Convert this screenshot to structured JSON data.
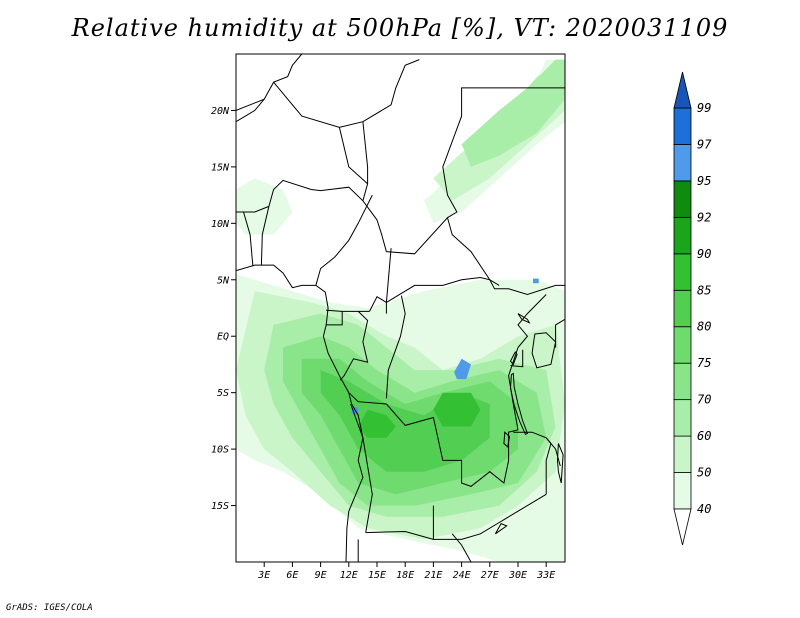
{
  "title": "Relative humidity at 500hPa [%], VT: 2020031109",
  "footer": "GrADS: IGES/COLA",
  "map": {
    "lon_range": [
      0,
      35
    ],
    "lat_range": [
      -20,
      25
    ],
    "x_ticks": [
      {
        "value": 3,
        "label": "3E"
      },
      {
        "value": 6,
        "label": "6E"
      },
      {
        "value": 9,
        "label": "9E"
      },
      {
        "value": 12,
        "label": "12E"
      },
      {
        "value": 15,
        "label": "15E"
      },
      {
        "value": 18,
        "label": "18E"
      },
      {
        "value": 21,
        "label": "21E"
      },
      {
        "value": 24,
        "label": "24E"
      },
      {
        "value": 27,
        "label": "27E"
      },
      {
        "value": 30,
        "label": "30E"
      },
      {
        "value": 33,
        "label": "33E"
      }
    ],
    "y_ticks": [
      {
        "value": 20,
        "label": "20N"
      },
      {
        "value": 15,
        "label": "15N"
      },
      {
        "value": 10,
        "label": "10N"
      },
      {
        "value": 5,
        "label": "5N"
      },
      {
        "value": 0,
        "label": "EQ"
      },
      {
        "value": -5,
        "label": "5S"
      },
      {
        "value": -10,
        "label": "10S"
      },
      {
        "value": -15,
        "label": "15S"
      }
    ]
  },
  "colorbar": {
    "labels": [
      "40",
      "50",
      "60",
      "70",
      "75",
      "80",
      "85",
      "90",
      "92",
      "95",
      "97",
      "99"
    ],
    "colors": [
      "#ffffff",
      "#e6fbe6",
      "#c9f5c9",
      "#a8eda8",
      "#8ae48a",
      "#6fdb6f",
      "#52cf52",
      "#33c033",
      "#1ca51c",
      "#0f8c0f",
      "#4f9bea",
      "#1f6fd8",
      "#1755b8"
    ]
  },
  "moist_areas": [
    {
      "level": 1,
      "pts": [
        [
          0,
          5.5
        ],
        [
          6,
          4
        ],
        [
          10,
          3
        ],
        [
          14,
          2.5
        ],
        [
          20,
          4
        ],
        [
          26,
          5
        ],
        [
          32,
          5
        ],
        [
          35,
          4
        ],
        [
          35,
          -20
        ],
        [
          28,
          -20
        ],
        [
          24,
          -19
        ],
        [
          18,
          -18
        ],
        [
          13,
          -17
        ],
        [
          9,
          -14
        ],
        [
          5,
          -12
        ],
        [
          2,
          -11
        ],
        [
          0,
          -10
        ]
      ]
    },
    {
      "level": 1,
      "pts": [
        [
          20,
          12
        ],
        [
          24,
          15
        ],
        [
          28,
          18
        ],
        [
          31,
          21
        ],
        [
          33,
          24.5
        ],
        [
          35,
          24.5
        ],
        [
          35,
          19
        ],
        [
          32,
          17
        ],
        [
          28,
          14
        ],
        [
          24,
          11
        ],
        [
          21,
          10
        ]
      ]
    },
    {
      "level": 1,
      "pts": [
        [
          0,
          13
        ],
        [
          2,
          14
        ],
        [
          5,
          13
        ],
        [
          6,
          11
        ],
        [
          4,
          9
        ],
        [
          1,
          9
        ],
        [
          0,
          10
        ]
      ]
    },
    {
      "level": 2,
      "pts": [
        [
          2,
          4
        ],
        [
          8,
          3
        ],
        [
          12,
          2
        ],
        [
          16,
          0
        ],
        [
          19,
          -1
        ],
        [
          22,
          -3
        ],
        [
          26,
          -2
        ],
        [
          30,
          0
        ],
        [
          34,
          1
        ],
        [
          35,
          -6
        ],
        [
          34,
          -12
        ],
        [
          30,
          -15
        ],
        [
          26,
          -17
        ],
        [
          20,
          -18
        ],
        [
          14,
          -17
        ],
        [
          10,
          -15
        ],
        [
          6,
          -12
        ],
        [
          3,
          -10
        ],
        [
          1,
          -7
        ],
        [
          0,
          -3
        ]
      ]
    },
    {
      "level": 2,
      "pts": [
        [
          21,
          14
        ],
        [
          25,
          17
        ],
        [
          29,
          20
        ],
        [
          32,
          23
        ],
        [
          35,
          24.5
        ],
        [
          35,
          20
        ],
        [
          31,
          17
        ],
        [
          27,
          14
        ],
        [
          23,
          12
        ]
      ]
    },
    {
      "level": 3,
      "pts": [
        [
          4,
          1
        ],
        [
          9,
          2
        ],
        [
          13,
          1
        ],
        [
          16,
          -1
        ],
        [
          19,
          -3
        ],
        [
          23,
          -3
        ],
        [
          28,
          -2
        ],
        [
          33,
          -3
        ],
        [
          34,
          -8
        ],
        [
          32,
          -12
        ],
        [
          28,
          -15
        ],
        [
          22,
          -16
        ],
        [
          16,
          -16
        ],
        [
          12,
          -15
        ],
        [
          9,
          -12
        ],
        [
          6,
          -9
        ],
        [
          4,
          -6
        ],
        [
          3,
          -3
        ]
      ]
    },
    {
      "level": 3,
      "pts": [
        [
          24,
          17
        ],
        [
          28,
          20
        ],
        [
          31,
          22
        ],
        [
          34,
          24.5
        ],
        [
          35,
          24.5
        ],
        [
          35,
          21
        ],
        [
          32,
          18
        ],
        [
          28,
          16
        ],
        [
          25,
          15
        ]
      ]
    },
    {
      "level": 4,
      "pts": [
        [
          5,
          -1
        ],
        [
          9,
          0
        ],
        [
          12,
          -1
        ],
        [
          15,
          -3
        ],
        [
          19,
          -5
        ],
        [
          23,
          -4
        ],
        [
          28,
          -3
        ],
        [
          32,
          -5
        ],
        [
          33,
          -9
        ],
        [
          30,
          -13
        ],
        [
          25,
          -14
        ],
        [
          19,
          -15
        ],
        [
          14,
          -15
        ],
        [
          11,
          -13
        ],
        [
          9,
          -10
        ],
        [
          7,
          -7
        ],
        [
          5,
          -4
        ]
      ]
    },
    {
      "level": 5,
      "pts": [
        [
          7,
          -2
        ],
        [
          11,
          -2
        ],
        [
          14,
          -4
        ],
        [
          18,
          -6
        ],
        [
          22,
          -5
        ],
        [
          27,
          -4
        ],
        [
          30,
          -6
        ],
        [
          30,
          -10
        ],
        [
          27,
          -12
        ],
        [
          22,
          -13
        ],
        [
          17,
          -14
        ],
        [
          13,
          -13
        ],
        [
          11,
          -10
        ],
        [
          9,
          -7
        ],
        [
          7,
          -5
        ]
      ]
    },
    {
      "level": 6,
      "pts": [
        [
          9,
          -3
        ],
        [
          12,
          -4
        ],
        [
          16,
          -6
        ],
        [
          20,
          -7
        ],
        [
          24,
          -5
        ],
        [
          27,
          -6
        ],
        [
          27,
          -9
        ],
        [
          24,
          -11
        ],
        [
          20,
          -12
        ],
        [
          16,
          -12
        ],
        [
          13,
          -10
        ],
        [
          11,
          -7
        ],
        [
          9,
          -5
        ]
      ]
    },
    {
      "level": 7,
      "pts": [
        [
          14,
          -6.5
        ],
        [
          16,
          -7
        ],
        [
          17,
          -8
        ],
        [
          16,
          -9
        ],
        [
          14,
          -9
        ],
        [
          13,
          -8
        ]
      ]
    },
    {
      "level": 7,
      "pts": [
        [
          22,
          -5
        ],
        [
          25,
          -5
        ],
        [
          26,
          -6.5
        ],
        [
          25,
          -8
        ],
        [
          22,
          -8
        ],
        [
          21,
          -6.5
        ]
      ]
    },
    {
      "level": 10,
      "pts": [
        [
          24,
          -2
        ],
        [
          25,
          -2.5
        ],
        [
          24.5,
          -3.8
        ],
        [
          23.5,
          -3.8
        ],
        [
          23.2,
          -3.2
        ]
      ]
    },
    {
      "level": 10,
      "pts": [
        [
          12.3,
          -6.3
        ],
        [
          13,
          -6.2
        ],
        [
          13,
          -6.9
        ],
        [
          12.3,
          -6.9
        ]
      ]
    },
    {
      "level": 10,
      "pts": [
        [
          31.6,
          5.1
        ],
        [
          32.2,
          5.1
        ],
        [
          32.2,
          4.7
        ],
        [
          31.6,
          4.7
        ]
      ]
    }
  ],
  "borders": [
    [
      [
        0,
        20
      ],
      [
        3,
        21
      ],
      [
        4,
        22.5
      ],
      [
        5.5,
        23
      ],
      [
        6,
        24
      ],
      [
        7,
        25
      ]
    ],
    [
      [
        3,
        21
      ],
      [
        2,
        20
      ],
      [
        0,
        19
      ]
    ],
    [
      [
        4,
        22.5
      ],
      [
        7,
        19.5
      ],
      [
        11,
        18.5
      ],
      [
        13.5,
        19
      ],
      [
        16.5,
        20.5
      ],
      [
        17,
        22
      ],
      [
        18,
        24
      ],
      [
        19.5,
        24.5
      ]
    ],
    [
      [
        11,
        18.5
      ],
      [
        12,
        15
      ],
      [
        14,
        13.5
      ]
    ],
    [
      [
        13.5,
        19
      ],
      [
        14,
        15
      ],
      [
        14,
        13.5
      ],
      [
        13.5,
        12
      ],
      [
        15,
        10.3
      ],
      [
        15.5,
        9
      ],
      [
        16,
        7.5
      ],
      [
        19,
        7.3
      ],
      [
        22.5,
        10.5
      ],
      [
        23.5,
        11
      ],
      [
        22.5,
        12.5
      ],
      [
        22,
        15
      ],
      [
        24,
        19.5
      ],
      [
        24,
        20
      ],
      [
        24,
        22
      ],
      [
        25,
        22
      ]
    ],
    [
      [
        25,
        22
      ],
      [
        30,
        22
      ],
      [
        33,
        22
      ],
      [
        35,
        22
      ]
    ],
    [
      [
        3.5,
        11.5
      ],
      [
        4,
        13
      ],
      [
        5,
        13.8
      ],
      [
        8,
        13
      ],
      [
        9,
        12.9
      ],
      [
        12,
        13.2
      ],
      [
        13.5,
        12
      ]
    ],
    [
      [
        0,
        11
      ],
      [
        1,
        11
      ],
      [
        2,
        11
      ],
      [
        3.5,
        11.5
      ]
    ],
    [
      [
        2.7,
        6.3
      ],
      [
        2.8,
        9
      ],
      [
        3.5,
        11.5
      ]
    ],
    [
      [
        1.8,
        6.2
      ],
      [
        1.5,
        9
      ],
      [
        0.8,
        11
      ]
    ],
    [
      [
        8.5,
        4.5
      ],
      [
        9,
        6
      ],
      [
        10.5,
        7
      ],
      [
        12,
        8.5
      ],
      [
        13,
        10
      ],
      [
        14.5,
        12.5
      ]
    ],
    [
      [
        14.2,
        2.2
      ],
      [
        15,
        3.5
      ],
      [
        16,
        3
      ],
      [
        19,
        4.5
      ],
      [
        22,
        4.5
      ],
      [
        24,
        5
      ],
      [
        26,
        5.2
      ],
      [
        27,
        5
      ],
      [
        27.5,
        4.2
      ],
      [
        29,
        4.2
      ],
      [
        31,
        3.7
      ],
      [
        34,
        4.5
      ],
      [
        35,
        4.5
      ]
    ],
    [
      [
        16.5,
        7.8
      ],
      [
        16,
        3
      ],
      [
        16,
        2
      ]
    ],
    [
      [
        22.5,
        10.5
      ],
      [
        23,
        9
      ],
      [
        25,
        7.5
      ],
      [
        27,
        5
      ],
      [
        28,
        4.5
      ]
    ],
    [
      [
        9.6,
        2.3
      ],
      [
        11.3,
        2.2
      ],
      [
        13,
        2.2
      ],
      [
        14.2,
        2.2
      ]
    ],
    [
      [
        9.6,
        1
      ],
      [
        11.3,
        1
      ],
      [
        11.3,
        2.2
      ]
    ],
    [
      [
        13,
        2.2
      ],
      [
        14,
        1.4
      ],
      [
        13.5,
        -0.5
      ],
      [
        14,
        -2.3
      ],
      [
        12.5,
        -2
      ],
      [
        11.5,
        -3.5
      ],
      [
        11.1,
        -3.9
      ]
    ],
    [
      [
        17.6,
        3.6
      ],
      [
        18,
        2
      ],
      [
        17.5,
        0
      ],
      [
        16.2,
        -3
      ],
      [
        16,
        -5.5
      ]
    ],
    [
      [
        12,
        -5
      ],
      [
        13,
        -5.8
      ],
      [
        16,
        -6
      ],
      [
        18,
        -7.9
      ],
      [
        21,
        -7.2
      ],
      [
        22,
        -11
      ],
      [
        24,
        -11
      ]
    ],
    [
      [
        12.2,
        -6
      ],
      [
        13.5,
        -9
      ],
      [
        14.5,
        -14
      ],
      [
        13.8,
        -17.4
      ]
    ],
    [
      [
        24,
        -11
      ],
      [
        24,
        -13
      ],
      [
        25,
        -13.3
      ],
      [
        27,
        -12
      ],
      [
        28.5,
        -13
      ],
      [
        29,
        -11
      ],
      [
        29,
        -8.5
      ],
      [
        30,
        -8.3
      ],
      [
        29.5,
        -6
      ],
      [
        29,
        -3.5
      ],
      [
        30,
        -1
      ]
    ],
    [
      [
        21,
        -15
      ],
      [
        21,
        -18
      ],
      [
        24,
        -18
      ],
      [
        26,
        -17.5
      ],
      [
        28,
        -16.5
      ],
      [
        30,
        -15.5
      ],
      [
        33,
        -14
      ]
    ],
    [
      [
        13.8,
        -17.4
      ],
      [
        18,
        -17.3
      ],
      [
        21,
        -18
      ]
    ],
    [
      [
        33,
        -14
      ],
      [
        33,
        -11
      ],
      [
        33.5,
        -9.5
      ],
      [
        33,
        -9
      ]
    ],
    [
      [
        30,
        -1
      ],
      [
        31,
        0
      ],
      [
        30,
        1
      ],
      [
        31,
        2
      ],
      [
        33,
        3.7
      ]
    ],
    [
      [
        34,
        -1
      ],
      [
        34,
        1
      ],
      [
        35,
        1.5
      ]
    ],
    [
      [
        23,
        -17.5
      ],
      [
        24,
        -18.5
      ],
      [
        25,
        -20
      ]
    ],
    [
      [
        13,
        -18
      ],
      [
        13,
        -20
      ]
    ],
    [
      [
        30.5,
        -1.2
      ],
      [
        30.5,
        -2.7
      ],
      [
        29.2,
        -2.6
      ]
    ],
    [
      [
        29.5,
        -8.5
      ],
      [
        31.5,
        -8.5
      ],
      [
        33,
        -9
      ],
      [
        34,
        -10
      ],
      [
        34.5,
        -11.5
      ]
    ]
  ],
  "coast": [
    [
      0,
      5.8
    ],
    [
      2,
      6.3
    ],
    [
      4,
      6.3
    ],
    [
      5,
      5.6
    ],
    [
      6,
      4.3
    ],
    [
      7,
      4.5
    ],
    [
      8.5,
      4.5
    ],
    [
      9.5,
      3.9
    ],
    [
      9.8,
      2.5
    ],
    [
      9.6,
      1
    ],
    [
      9.3,
      0
    ],
    [
      9.8,
      -1.5
    ],
    [
      11,
      -3.5
    ],
    [
      12,
      -5
    ],
    [
      12.3,
      -6
    ],
    [
      13,
      -7
    ],
    [
      13.5,
      -9
    ],
    [
      13,
      -11
    ],
    [
      13.5,
      -12.5
    ],
    [
      12,
      -15.5
    ],
    [
      11.8,
      -17
    ],
    [
      11.7,
      -20
    ]
  ],
  "lakes": [
    [
      [
        29.5,
        -3.3
      ],
      [
        29.6,
        -4.5
      ],
      [
        30,
        -6
      ],
      [
        30.5,
        -7.5
      ],
      [
        31,
        -8.6
      ],
      [
        30.8,
        -8.7
      ],
      [
        30.2,
        -7.6
      ],
      [
        29.6,
        -6.1
      ],
      [
        29.2,
        -4.6
      ],
      [
        29.3,
        -3.4
      ]
    ],
    [
      [
        31.8,
        0.2
      ],
      [
        33,
        0.3
      ],
      [
        34,
        -0.5
      ],
      [
        33.5,
        -2.5
      ],
      [
        32,
        -2.8
      ],
      [
        31.5,
        -1.5
      ],
      [
        31.7,
        -0.3
      ]
    ],
    [
      [
        30,
        2
      ],
      [
        31,
        1.5
      ],
      [
        31.2,
        1.2
      ],
      [
        30.4,
        1.5
      ]
    ],
    [
      [
        28.6,
        -8.5
      ],
      [
        29.1,
        -8.9
      ],
      [
        28.9,
        -9.8
      ],
      [
        28.5,
        -9.5
      ]
    ],
    [
      [
        29.7,
        -1.4
      ],
      [
        29.9,
        -1.6
      ],
      [
        29.5,
        -2.5
      ],
      [
        29.2,
        -2.2
      ]
    ],
    [
      [
        34.3,
        -9.5
      ],
      [
        34.8,
        -10.5
      ],
      [
        34.6,
        -13
      ],
      [
        34.3,
        -12
      ],
      [
        34.2,
        -11
      ]
    ],
    [
      [
        28.2,
        -16.6
      ],
      [
        28.8,
        -16.8
      ],
      [
        27.6,
        -17.5
      ]
    ]
  ]
}
